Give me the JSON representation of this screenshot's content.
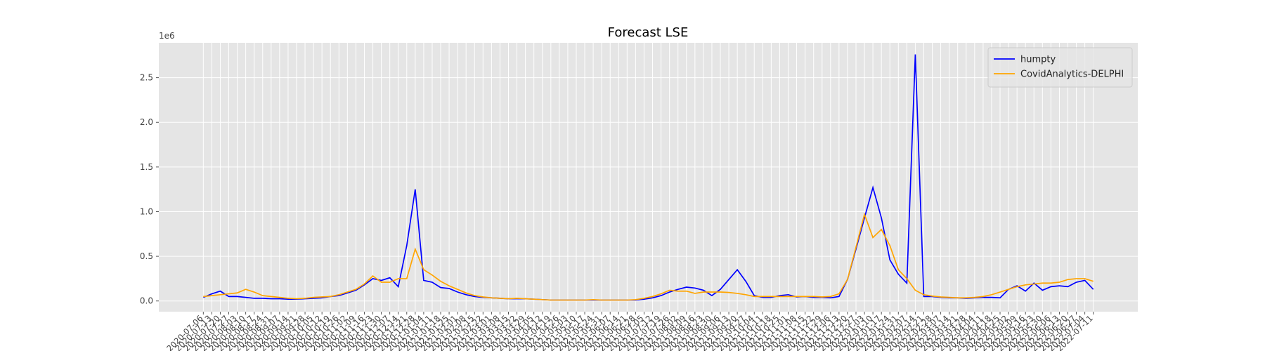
{
  "chart_data": {
    "type": "line",
    "title": "Forecast LSE",
    "y_offset": "1e6",
    "categories": [
      "2020-07-06",
      "2020-07-13",
      "2020-07-20",
      "2020-07-27",
      "2020-08-03",
      "2020-08-10",
      "2020-08-17",
      "2020-08-24",
      "2020-08-31",
      "2020-09-07",
      "2020-09-14",
      "2020-09-21",
      "2020-09-28",
      "2020-10-05",
      "2020-10-12",
      "2020-10-19",
      "2020-10-26",
      "2020-11-02",
      "2020-11-09",
      "2020-11-16",
      "2020-11-23",
      "2020-11-30",
      "2020-12-07",
      "2020-12-14",
      "2020-12-21",
      "2020-12-28",
      "2021-01-04",
      "2021-01-11",
      "2021-01-18",
      "2021-01-25",
      "2021-02-01",
      "2021-02-08",
      "2021-02-15",
      "2021-02-22",
      "2021-03-01",
      "2021-03-08",
      "2021-03-15",
      "2021-03-22",
      "2021-03-29",
      "2021-04-05",
      "2021-04-12",
      "2021-04-19",
      "2021-04-26",
      "2021-05-03",
      "2021-05-10",
      "2021-05-17",
      "2021-05-24",
      "2021-05-31",
      "2021-06-07",
      "2021-06-14",
      "2021-06-21",
      "2021-06-28",
      "2021-07-05",
      "2021-07-12",
      "2021-07-19",
      "2021-07-26",
      "2021-08-02",
      "2021-08-09",
      "2021-08-16",
      "2021-08-23",
      "2021-08-30",
      "2021-09-06",
      "2021-09-13",
      "2021-09-20",
      "2021-09-27",
      "2021-10-04",
      "2021-10-11",
      "2021-10-18",
      "2021-10-25",
      "2021-11-01",
      "2021-11-08",
      "2021-11-15",
      "2021-11-22",
      "2021-11-29",
      "2021-12-06",
      "2021-12-13",
      "2021-12-20",
      "2021-12-27",
      "2022-01-03",
      "2022-01-10",
      "2022-01-17",
      "2022-01-24",
      "2022-01-31",
      "2022-02-07",
      "2022-02-14",
      "2022-02-21",
      "2022-02-28",
      "2022-03-07",
      "2022-03-14",
      "2022-03-21",
      "2022-03-28",
      "2022-04-04",
      "2022-04-11",
      "2022-04-18",
      "2022-04-25",
      "2022-05-02",
      "2022-05-09",
      "2022-05-16",
      "2022-05-23",
      "2022-05-30",
      "2022-06-06",
      "2022-06-13",
      "2022-06-20",
      "2022-06-27",
      "2022-07-04",
      "2022-07-11"
    ],
    "series": [
      {
        "name": "humpty",
        "color": "#0000ff",
        "values": [
          0.04,
          0.08,
          0.11,
          0.05,
          0.05,
          0.04,
          0.03,
          0.03,
          0.025,
          0.025,
          0.02,
          0.02,
          0.025,
          0.03,
          0.035,
          0.05,
          0.06,
          0.09,
          0.12,
          0.18,
          0.25,
          0.23,
          0.26,
          0.16,
          0.62,
          1.25,
          0.23,
          0.21,
          0.15,
          0.14,
          0.1,
          0.07,
          0.05,
          0.04,
          0.035,
          0.03,
          0.025,
          0.025,
          0.025,
          0.02,
          0.015,
          0.01,
          0.01,
          0.01,
          0.01,
          0.01,
          0.01,
          0.01,
          0.01,
          0.01,
          0.01,
          0.01,
          0.02,
          0.035,
          0.06,
          0.1,
          0.13,
          0.155,
          0.145,
          0.12,
          0.06,
          0.13,
          0.24,
          0.35,
          0.22,
          0.06,
          0.04,
          0.04,
          0.06,
          0.07,
          0.045,
          0.05,
          0.04,
          0.04,
          0.035,
          0.05,
          0.24,
          0.58,
          0.93,
          1.27,
          0.93,
          0.46,
          0.3,
          0.2,
          2.76,
          0.05,
          0.05,
          0.04,
          0.035,
          0.035,
          0.03,
          0.035,
          0.04,
          0.04,
          0.035,
          0.13,
          0.17,
          0.11,
          0.2,
          0.12,
          0.16,
          0.17,
          0.16,
          0.21,
          0.23,
          0.13
        ]
      },
      {
        "name": "CovidAnalytics-DELPHI",
        "color": "#ffa500",
        "values": [
          0.05,
          0.06,
          0.07,
          0.08,
          0.09,
          0.13,
          0.1,
          0.06,
          0.05,
          0.04,
          0.03,
          0.025,
          0.03,
          0.04,
          0.045,
          0.05,
          0.07,
          0.1,
          0.13,
          0.19,
          0.28,
          0.21,
          0.21,
          0.25,
          0.25,
          0.58,
          0.35,
          0.29,
          0.22,
          0.17,
          0.13,
          0.09,
          0.06,
          0.045,
          0.035,
          0.03,
          0.025,
          0.03,
          0.025,
          0.02,
          0.015,
          0.01,
          0.01,
          0.01,
          0.01,
          0.01,
          0.015,
          0.01,
          0.01,
          0.01,
          0.01,
          0.015,
          0.03,
          0.05,
          0.08,
          0.12,
          0.11,
          0.11,
          0.085,
          0.1,
          0.1,
          0.1,
          0.095,
          0.085,
          0.07,
          0.05,
          0.05,
          0.05,
          0.05,
          0.05,
          0.05,
          0.05,
          0.05,
          0.045,
          0.05,
          0.08,
          0.24,
          0.6,
          0.97,
          0.71,
          0.8,
          0.62,
          0.35,
          0.25,
          0.12,
          0.07,
          0.055,
          0.045,
          0.04,
          0.035,
          0.035,
          0.04,
          0.05,
          0.07,
          0.1,
          0.13,
          0.16,
          0.18,
          0.19,
          0.2,
          0.2,
          0.21,
          0.24,
          0.25,
          0.25,
          0.22
        ]
      }
    ],
    "ylim": [
      -0.12,
      2.89
    ],
    "yticks": [
      {
        "value": 0,
        "label": "0.0"
      },
      0.5,
      {
        "value": 1,
        "label": "1.0"
      },
      1.5,
      {
        "value": 2,
        "label": "2.0"
      },
      2.5
    ],
    "grid": true,
    "legend": "upper right"
  }
}
